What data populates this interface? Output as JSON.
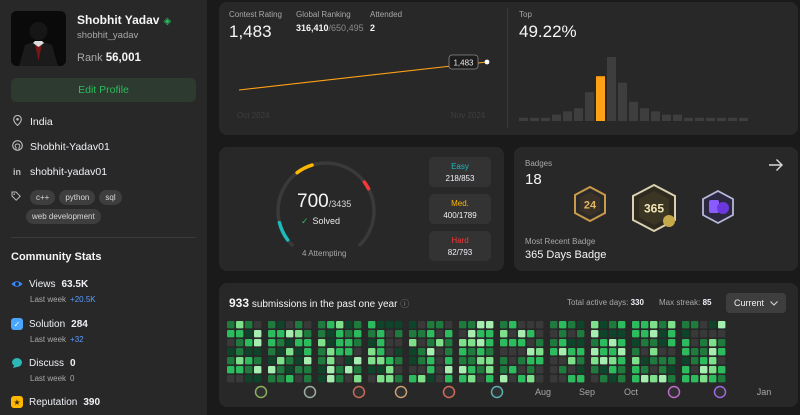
{
  "profile": {
    "name": "Shobhit Yadav",
    "handle": "shobhit_yadav",
    "rank_label": "Rank",
    "rank_value": "56,001",
    "edit_label": "Edit Profile",
    "location": "India",
    "github": "Shobhit-Yadav01",
    "linkedin": "shobhit-yadav01",
    "skills": [
      "c++",
      "python",
      "sql",
      "web development"
    ]
  },
  "community": {
    "title": "Community Stats",
    "lastweek_label": "Last week",
    "items": [
      {
        "label": "Views",
        "value": "63.5K",
        "delta": "+20.5K",
        "delta_color": "#5a9bff",
        "icon": "eye-icon",
        "color": "#3b8cff"
      },
      {
        "label": "Solution",
        "value": "284",
        "delta": "+32",
        "delta_color": "#5a9bff",
        "icon": "checkbox-icon",
        "color": "#49a7ff"
      },
      {
        "label": "Discuss",
        "value": "0",
        "delta": "0",
        "delta_color": "#a8a8a8",
        "icon": "chat-bubble-icon",
        "color": "#2cb8b8"
      },
      {
        "label": "Reputation",
        "value": "390",
        "icon": "star-icon",
        "color": "#ffb700"
      }
    ]
  },
  "contest": {
    "rating_label": "Contest Rating",
    "rating": "1,483",
    "global_label": "Global Ranking",
    "global_rank": "316,410",
    "global_total": "/650,495",
    "attended_label": "Attended",
    "attended": "2",
    "tooltip": "1,483",
    "x_start": "Oct 2024",
    "x_end": "Nov 2024",
    "top_label": "Top",
    "top_value": "49.22%",
    "histogram": [
      1,
      1,
      1,
      2,
      3,
      4,
      9,
      14,
      20,
      12,
      6,
      4,
      3,
      2,
      2,
      1,
      1,
      1,
      1,
      1,
      1
    ],
    "highlight_index": 7
  },
  "solved": {
    "solved": "700",
    "total": "/3435",
    "solved_label": "Solved",
    "attempting": "4 Attempting",
    "easy_label": "Easy",
    "easy": "218/853",
    "easy_color": "#1cbaba",
    "medium_label": "Med.",
    "medium": "400/1789",
    "medium_color": "#ffb700",
    "hard_label": "Hard",
    "hard": "82/793",
    "hard_color": "#f63737",
    "easy_frac": 0.2556,
    "medium_frac": 0.2236,
    "hard_frac": 0.1034
  },
  "badges": {
    "title": "Badges",
    "count": "18",
    "recent_label": "Most Recent Badge",
    "recent": "365 Days Badge",
    "badge_texts": [
      "24",
      "365"
    ]
  },
  "submissions": {
    "count": "933",
    "label": "submissions in the past one year",
    "active_label": "Total active days:",
    "active_days": "330",
    "streak_label": "Max streak:",
    "max_streak": "85",
    "dropdown": "Current",
    "month_labels": [
      "Aug",
      "Sep",
      "Oct",
      "Jan"
    ]
  }
}
